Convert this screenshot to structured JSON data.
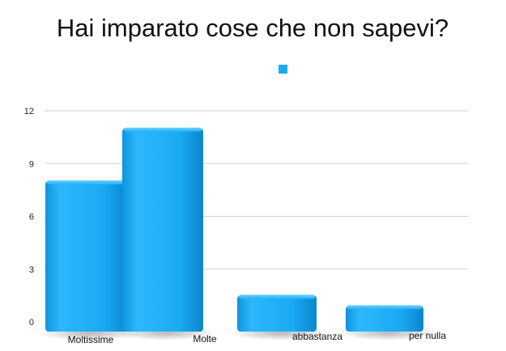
{
  "chart_data": {
    "type": "bar",
    "title": "Hai imparato cose che non sapevi?",
    "categories": [
      "Moltissime",
      "Molte",
      "abbastanza",
      "per nulla"
    ],
    "series": [
      {
        "color": "#1aaaf4",
        "values": [
          8,
          11,
          1.5,
          0.9
        ]
      }
    ],
    "yticks": [
      0,
      3,
      6,
      9,
      12
    ],
    "ylim": [
      0,
      12
    ],
    "grid": true,
    "legend_position": "top-center"
  }
}
